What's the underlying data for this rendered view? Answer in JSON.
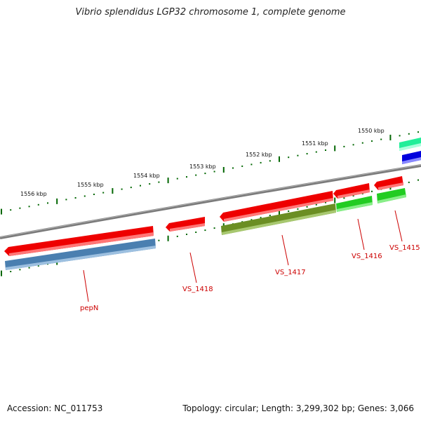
{
  "title": "Vibrio splendidus LGP32 chromosome 1, complete genome",
  "accession": "Accession: NC_011753",
  "summary": "Topology: circular; Length: 3,299,302 bp; Genes: 3,066",
  "colors": {
    "backbone": "#808080",
    "gene": "#ee0000",
    "cds_blue": "#4a7fb0",
    "cds_olive": "#6b8e23",
    "cds_green": "#22cc22",
    "cds_teal": "#22ee99",
    "cds_deepblue": "#0000dd",
    "tick": "#006600",
    "label": "#cc0000"
  },
  "scale_labels": [
    "1556 kbp",
    "1555 kbp",
    "1554 kbp",
    "1553 kbp",
    "1552 kbp",
    "1551 kbp",
    "1550 kbp"
  ],
  "gene_labels": [
    "pepN",
    "VS_1418",
    "VS_1417",
    "VS_1416",
    "VS_1415"
  ]
}
